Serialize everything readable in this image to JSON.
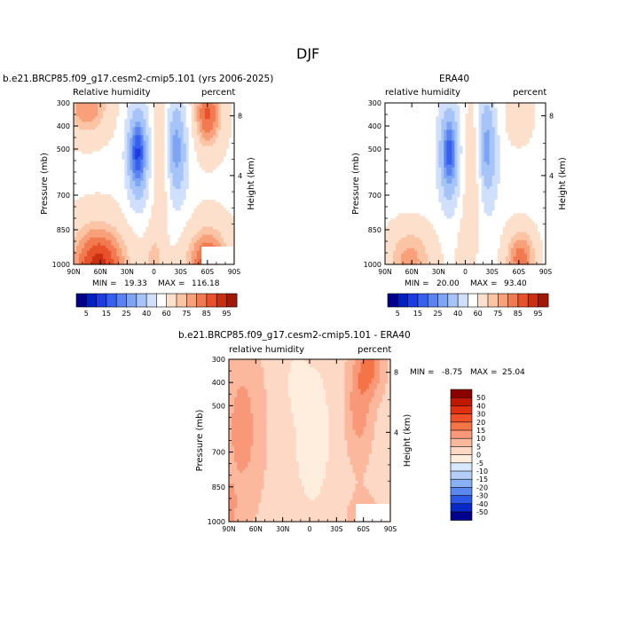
{
  "figure": {
    "title": "DJF"
  },
  "chart_data": [
    {
      "type": "contour",
      "title": "b.e21.BRCP85.f09_g17.cesm2-cmip5.101 (yrs 2006-2025)",
      "left_label": "Relative humidity",
      "right_label": "percent",
      "xlabel": "",
      "ylabel": "Pressure (mb)",
      "ylabel_right": "Height (km)",
      "x_ticks": [
        "90N",
        "60N",
        "30N",
        "0",
        "30S",
        "60S",
        "90S"
      ],
      "y_ticks": [
        "300",
        "400",
        "500",
        "700",
        "850",
        "1000"
      ],
      "height_ticks": [
        "8",
        "4"
      ],
      "min_label": "MIN =",
      "min_value": "19.33",
      "max_label": "MAX =",
      "max_value": "116.18",
      "field": "model"
    },
    {
      "type": "contour",
      "title": "ERA40",
      "left_label": "relative humidity",
      "right_label": "percent",
      "xlabel": "",
      "ylabel": "Pressure (mb)",
      "ylabel_right": "Height (km)",
      "x_ticks": [
        "90N",
        "60N",
        "30N",
        "0",
        "30S",
        "60S",
        "90S"
      ],
      "y_ticks": [
        "300",
        "400",
        "500",
        "700",
        "850",
        "1000"
      ],
      "height_ticks": [
        "8",
        "4"
      ],
      "min_label": "MIN =",
      "min_value": "20.00",
      "max_label": "MAX =",
      "max_value": "93.40",
      "field": "obs"
    },
    {
      "type": "contour",
      "title": "b.e21.BRCP85.f09_g17.cesm2-cmip5.101 - ERA40",
      "left_label": "relative humidity",
      "right_label": "percent",
      "xlabel": "",
      "ylabel": "Pressure (mb)",
      "ylabel_right": "Height (km)",
      "x_ticks": [
        "90N",
        "60N",
        "30N",
        "0",
        "30S",
        "60S",
        "90S"
      ],
      "y_ticks": [
        "300",
        "400",
        "500",
        "700",
        "850",
        "1000"
      ],
      "height_ticks": [
        "8",
        "4"
      ],
      "min_label": "MIN =",
      "min_value": "-8.75",
      "max_label": "MAX =",
      "max_value": "25.04",
      "field": "diff"
    }
  ],
  "colorbars": {
    "abs": {
      "labels": [
        "5",
        "15",
        "25",
        "40",
        "60",
        "75",
        "85",
        "95"
      ],
      "levels": [
        5,
        10,
        15,
        20,
        25,
        30,
        40,
        50,
        60,
        70,
        75,
        80,
        85,
        90,
        95
      ],
      "colors": [
        "#00008b",
        "#0020c0",
        "#1c3be0",
        "#3660f0",
        "#5a82f0",
        "#7ea4f4",
        "#a6c4f8",
        "#d0e0fc",
        "#ffffff",
        "#fde0cc",
        "#fbc4a4",
        "#f8a07a",
        "#f27a50",
        "#e8522a",
        "#c83010",
        "#a01808"
      ]
    },
    "diff": {
      "labels": [
        "50",
        "40",
        "30",
        "20",
        "15",
        "10",
        "5",
        "0",
        "-5",
        "-10",
        "-15",
        "-20",
        "-30",
        "-40",
        "-50"
      ],
      "colors": [
        "#8b0000",
        "#c01800",
        "#e03010",
        "#f05028",
        "#f47448",
        "#f89878",
        "#fbb89c",
        "#fdd8c4",
        "#ffeedd",
        "#d8e8fc",
        "#b4cef8",
        "#8ab0f4",
        "#5a88f0",
        "#2c58e8",
        "#0828c8",
        "#00008b"
      ]
    }
  }
}
